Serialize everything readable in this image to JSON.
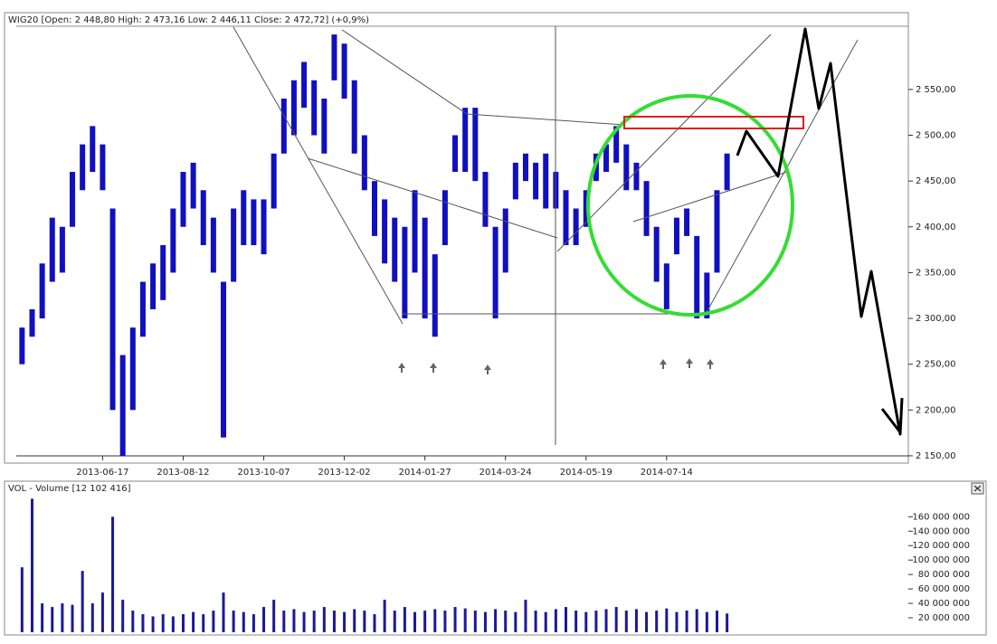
{
  "chart_data": [
    {
      "type": "ohlc",
      "title": "WIG20 [Open: 2 448,80  High: 2 473,16  Low: 2 446,11  Close: 2 472,72] (+0,9%)",
      "color": "#1010c0",
      "x": [
        "2013-04-22",
        "2013-04-29",
        "2013-05-06",
        "2013-05-13",
        "2013-05-20",
        "2013-05-27",
        "2013-06-03",
        "2013-06-10",
        "2013-06-17",
        "2013-06-24",
        "2013-07-01",
        "2013-07-08",
        "2013-07-15",
        "2013-07-22",
        "2013-07-29",
        "2013-08-05",
        "2013-08-12",
        "2013-08-19",
        "2013-08-26",
        "2013-09-02",
        "2013-09-09",
        "2013-09-16",
        "2013-09-23",
        "2013-09-30",
        "2013-10-07",
        "2013-10-14",
        "2013-10-21",
        "2013-10-28",
        "2013-11-04",
        "2013-11-11",
        "2013-11-18",
        "2013-11-25",
        "2013-12-02",
        "2013-12-09",
        "2013-12-16",
        "2013-12-23",
        "2013-12-30",
        "2014-01-06",
        "2014-01-13",
        "2014-01-20",
        "2014-01-27",
        "2014-02-03",
        "2014-02-10",
        "2014-02-17",
        "2014-02-24",
        "2014-03-03",
        "2014-03-10",
        "2014-03-17",
        "2014-03-24",
        "2014-03-31",
        "2014-04-07",
        "2014-04-14",
        "2014-04-21",
        "2014-04-28",
        "2014-05-05",
        "2014-05-12",
        "2014-05-19",
        "2014-05-26",
        "2014-06-02",
        "2014-06-09",
        "2014-06-16",
        "2014-06-23",
        "2014-06-30",
        "2014-07-07",
        "2014-07-14",
        "2014-07-21",
        "2014-07-28",
        "2014-08-04",
        "2014-08-11",
        "2014-08-18",
        "2014-08-25"
      ],
      "high": [
        2290,
        2310,
        2360,
        2410,
        2400,
        2460,
        2490,
        2510,
        2490,
        2420,
        2260,
        2290,
        2340,
        2360,
        2380,
        2420,
        2460,
        2470,
        2440,
        2410,
        2340,
        2420,
        2440,
        2430,
        2430,
        2480,
        2540,
        2560,
        2580,
        2560,
        2540,
        2610,
        2600,
        2560,
        2500,
        2450,
        2430,
        2410,
        2400,
        2440,
        2410,
        2370,
        2440,
        2500,
        2530,
        2530,
        2460,
        2400,
        2420,
        2470,
        2480,
        2470,
        2480,
        2460,
        2440,
        2420,
        2440,
        2480,
        2490,
        2510,
        2490,
        2470,
        2450,
        2400,
        2360,
        2410,
        2420,
        2390,
        2350,
        2440,
        2480
      ],
      "low": [
        2250,
        2280,
        2300,
        2340,
        2350,
        2400,
        2440,
        2460,
        2440,
        2200,
        2150,
        2200,
        2280,
        2310,
        2320,
        2350,
        2400,
        2420,
        2380,
        2350,
        2170,
        2340,
        2380,
        2380,
        2370,
        2420,
        2480,
        2500,
        2530,
        2500,
        2480,
        2560,
        2540,
        2480,
        2440,
        2390,
        2360,
        2340,
        2300,
        2350,
        2300,
        2280,
        2380,
        2460,
        2460,
        2450,
        2400,
        2300,
        2350,
        2430,
        2450,
        2430,
        2420,
        2420,
        2380,
        2380,
        2400,
        2450,
        2460,
        2470,
        2440,
        2440,
        2390,
        2340,
        2310,
        2370,
        2390,
        2300,
        2300,
        2350,
        2440
      ],
      "xlim": [
        "2013-04-18",
        "2014-12-29"
      ],
      "xticks": [
        "2013-06-17",
        "2013-08-12",
        "2013-10-07",
        "2013-12-02",
        "2014-01-27",
        "2014-03-24",
        "2014-05-19",
        "2014-07-14"
      ],
      "ylim": [
        2144,
        2620
      ],
      "yticks": [
        {
          "value": 2150,
          "label": "2 150,00"
        },
        {
          "value": 2200,
          "label": "2 200,00"
        },
        {
          "value": 2250,
          "label": "2 250,00"
        },
        {
          "value": 2300,
          "label": "2 300,00"
        },
        {
          "value": 2350,
          "label": "2 350,00"
        },
        {
          "value": 2400,
          "label": "2 400,00"
        },
        {
          "value": 2450,
          "label": "2 450,00"
        },
        {
          "value": 2500,
          "label": "2 500,00"
        },
        {
          "value": 2550,
          "label": "2 550,00"
        }
      ]
    },
    {
      "type": "bar",
      "title": "VOL - Volume [12 102 416]",
      "color": "#1a1a99",
      "x": [
        "2013-04-22",
        "2013-04-29",
        "2013-05-06",
        "2013-05-13",
        "2013-05-20",
        "2013-05-27",
        "2013-06-03",
        "2013-06-10",
        "2013-06-17",
        "2013-06-24",
        "2013-07-01",
        "2013-07-08",
        "2013-07-15",
        "2013-07-22",
        "2013-07-29",
        "2013-08-05",
        "2013-08-12",
        "2013-08-19",
        "2013-08-26",
        "2013-09-02",
        "2013-09-09",
        "2013-09-16",
        "2013-09-23",
        "2013-09-30",
        "2013-10-07",
        "2013-10-14",
        "2013-10-21",
        "2013-10-28",
        "2013-11-04",
        "2013-11-11",
        "2013-11-18",
        "2013-11-25",
        "2013-12-02",
        "2013-12-09",
        "2013-12-16",
        "2013-12-23",
        "2013-12-30",
        "2014-01-06",
        "2014-01-13",
        "2014-01-20",
        "2014-01-27",
        "2014-02-03",
        "2014-02-10",
        "2014-02-17",
        "2014-02-24",
        "2014-03-03",
        "2014-03-10",
        "2014-03-17",
        "2014-03-24",
        "2014-03-31",
        "2014-04-07",
        "2014-04-14",
        "2014-04-21",
        "2014-04-28",
        "2014-05-05",
        "2014-05-12",
        "2014-05-19",
        "2014-05-26",
        "2014-06-02",
        "2014-06-09",
        "2014-06-16",
        "2014-06-23",
        "2014-06-30",
        "2014-07-07",
        "2014-07-14",
        "2014-07-21",
        "2014-07-28",
        "2014-08-04",
        "2014-08-11",
        "2014-08-18",
        "2014-08-25"
      ],
      "values": [
        90000000,
        185000000,
        40000000,
        35000000,
        40000000,
        38000000,
        85000000,
        40000000,
        55000000,
        160000000,
        45000000,
        30000000,
        25000000,
        22000000,
        25000000,
        22000000,
        25000000,
        28000000,
        25000000,
        30000000,
        55000000,
        30000000,
        28000000,
        25000000,
        35000000,
        45000000,
        30000000,
        32000000,
        28000000,
        30000000,
        35000000,
        30000000,
        28000000,
        32000000,
        30000000,
        25000000,
        45000000,
        30000000,
        35000000,
        28000000,
        30000000,
        32000000,
        30000000,
        35000000,
        33000000,
        30000000,
        28000000,
        32000000,
        30000000,
        28000000,
        45000000,
        30000000,
        28000000,
        32000000,
        35000000,
        30000000,
        28000000,
        30000000,
        32000000,
        35000000,
        30000000,
        32000000,
        28000000,
        30000000,
        33000000,
        28000000,
        30000000,
        32000000,
        28000000,
        30000000,
        26000000
      ],
      "xlim": [
        "2013-04-18",
        "2014-12-29"
      ],
      "ylim": [
        0,
        198000000
      ],
      "yticks": [
        {
          "value": 20000000,
          "label": "20 000 000"
        },
        {
          "value": 40000000,
          "label": "40 000 000"
        },
        {
          "value": 60000000,
          "label": "60 000 000"
        },
        {
          "value": 80000000,
          "label": "80 000 000"
        },
        {
          "value": 100000000,
          "label": "100 000 000"
        },
        {
          "value": 120000000,
          "label": "120 000 000"
        },
        {
          "value": 140000000,
          "label": "140 000 000"
        },
        {
          "value": 160000000,
          "label": "160 000 000"
        }
      ]
    }
  ]
}
